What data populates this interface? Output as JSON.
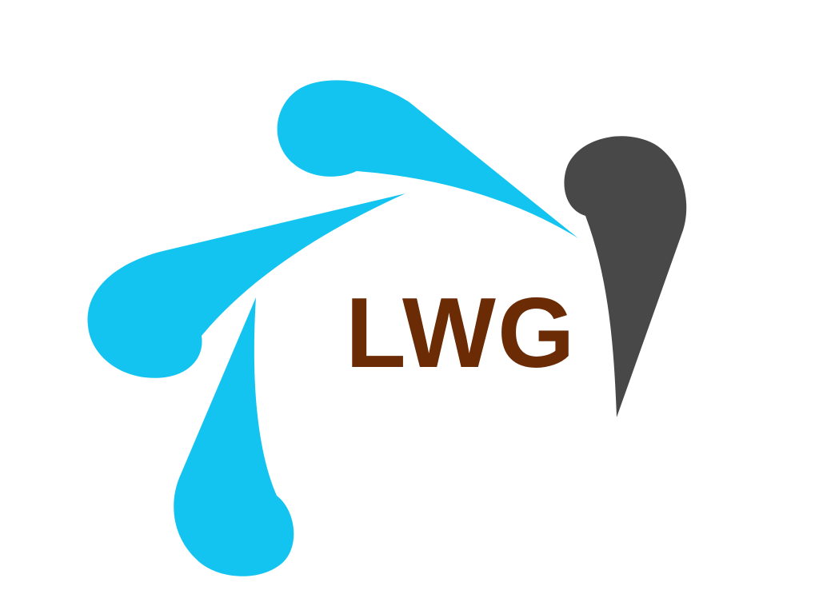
{
  "logo": {
    "text": "LWG",
    "colors": {
      "drops": "#14c4f0",
      "dark_drop": "#484848",
      "text": "#6a2b05",
      "background": "#ffffff"
    },
    "elements": [
      "blue-drop-top",
      "blue-drop-left",
      "blue-drop-bottom",
      "dark-drop-right",
      "logo-text"
    ]
  }
}
